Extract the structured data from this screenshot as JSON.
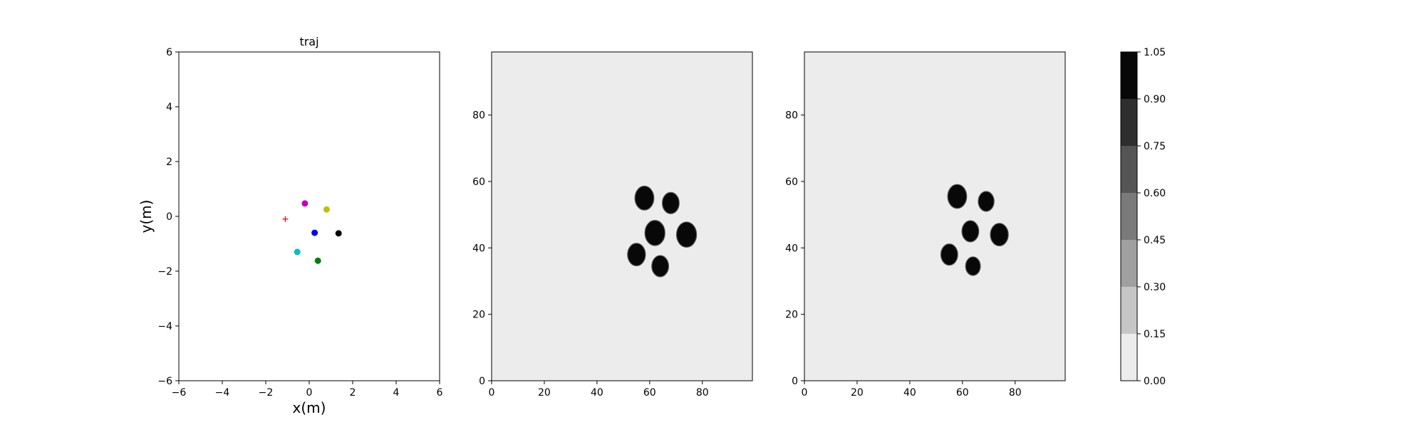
{
  "chart_data": [
    {
      "type": "scatter",
      "title": "traj",
      "xlabel": "x(m)",
      "ylabel": "y(m)",
      "xlim": [
        -6,
        6
      ],
      "ylim": [
        -6,
        6
      ],
      "xticks": [
        -6,
        -4,
        -2,
        0,
        2,
        4,
        6
      ],
      "yticks": [
        -6,
        -4,
        -2,
        0,
        2,
        4,
        6
      ],
      "grid": false,
      "points": [
        {
          "x": -1.1,
          "y": -0.1,
          "color": "#ff0000",
          "marker": "plus"
        },
        {
          "x": -0.2,
          "y": 0.47,
          "color": "#bf00bf",
          "marker": "dot"
        },
        {
          "x": 0.8,
          "y": 0.25,
          "color": "#bfbf00",
          "marker": "dot"
        },
        {
          "x": 0.25,
          "y": -0.6,
          "color": "#0000ff",
          "marker": "dot"
        },
        {
          "x": 1.35,
          "y": -0.62,
          "color": "#000000",
          "marker": "dot"
        },
        {
          "x": -0.55,
          "y": -1.3,
          "color": "#00bfbf",
          "marker": "dot"
        },
        {
          "x": 0.4,
          "y": -1.62,
          "color": "#008000",
          "marker": "dot"
        }
      ]
    },
    {
      "type": "heatmap",
      "title": "",
      "xlim": [
        0,
        99
      ],
      "ylim": [
        0,
        99
      ],
      "xticks": [
        0,
        20,
        40,
        60,
        80
      ],
      "yticks": [
        0,
        20,
        40,
        60,
        80
      ],
      "background_value": 0.05,
      "blobs": [
        {
          "x": 58,
          "y": 55,
          "r": 3.6,
          "value": 1.0
        },
        {
          "x": 68,
          "y": 53.5,
          "r": 3.2,
          "value": 1.0
        },
        {
          "x": 62,
          "y": 44.5,
          "r": 3.8,
          "value": 1.0
        },
        {
          "x": 74,
          "y": 44,
          "r": 3.8,
          "value": 1.0
        },
        {
          "x": 55,
          "y": 38,
          "r": 3.4,
          "value": 1.0
        },
        {
          "x": 64,
          "y": 34.5,
          "r": 3.2,
          "value": 1.0
        }
      ]
    },
    {
      "type": "heatmap",
      "title": "",
      "xlim": [
        0,
        99
      ],
      "ylim": [
        0,
        99
      ],
      "xticks": [
        0,
        20,
        40,
        60,
        80
      ],
      "yticks": [
        0,
        20,
        40,
        60,
        80
      ],
      "background_value": 0.05,
      "blobs": [
        {
          "x": 58,
          "y": 55.5,
          "r": 3.6,
          "value": 1.0
        },
        {
          "x": 69,
          "y": 54,
          "r": 3.0,
          "value": 1.0
        },
        {
          "x": 63,
          "y": 45,
          "r": 3.2,
          "value": 1.0
        },
        {
          "x": 74,
          "y": 44,
          "r": 3.4,
          "value": 1.0
        },
        {
          "x": 55,
          "y": 38,
          "r": 3.2,
          "value": 1.0
        },
        {
          "x": 64,
          "y": 34.5,
          "r": 2.8,
          "value": 1.0
        }
      ]
    }
  ],
  "colorbar": {
    "levels": [
      0.0,
      0.15,
      0.3,
      0.45,
      0.6,
      0.75,
      0.9,
      1.05
    ],
    "tick_labels": [
      "0.00",
      "0.15",
      "0.30",
      "0.45",
      "0.60",
      "0.75",
      "0.90",
      "1.05"
    ],
    "colors": [
      "#ececec",
      "#c6c6c6",
      "#a0a0a0",
      "#7a7a7a",
      "#555555",
      "#2e2e2e",
      "#080808"
    ]
  }
}
